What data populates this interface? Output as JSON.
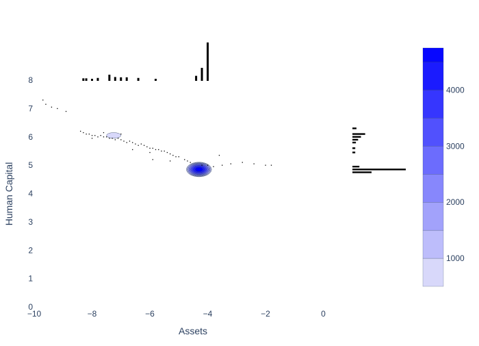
{
  "chart_data": {
    "type": "contour",
    "xlabel": "Assets",
    "ylabel": "Human Capital",
    "xlim": [
      -10,
      0
    ],
    "ylim": [
      0,
      9.2
    ],
    "x_ticks": [
      -10,
      -8,
      -6,
      -4,
      -2,
      0
    ],
    "x_tick_labels": [
      "−10",
      "−8",
      "−6",
      "−4",
      "−2",
      "0"
    ],
    "y_ticks": [
      0,
      1,
      2,
      3,
      4,
      5,
      6,
      7,
      8
    ],
    "y_tick_labels": [
      "0",
      "1",
      "2",
      "3",
      "4",
      "5",
      "6",
      "7",
      "8"
    ],
    "grid": false,
    "colorbar": {
      "range": [
        500,
        4750
      ],
      "ticks": [
        1000,
        2000,
        3000,
        4000
      ],
      "tick_labels": [
        "1000",
        "2000",
        "3000",
        "4000"
      ],
      "levels": [
        500,
        1000,
        1500,
        2000,
        2500,
        3000,
        3500,
        4000,
        4500,
        4750
      ],
      "color_low": "#e6e6fa",
      "color_high": "#0000ff"
    },
    "density_peaks": [
      {
        "x": -4.3,
        "y": 4.85,
        "value": 4700
      },
      {
        "x": -7.25,
        "y": 6.05,
        "value": 900
      }
    ],
    "scatter_points": [
      [
        -9.7,
        7.3
      ],
      [
        -9.6,
        7.15
      ],
      [
        -9.4,
        7.05
      ],
      [
        -9.2,
        7.0
      ],
      [
        -8.9,
        6.9
      ],
      [
        -8.4,
        6.2
      ],
      [
        -8.3,
        6.15
      ],
      [
        -8.2,
        6.1
      ],
      [
        -8.1,
        6.1
      ],
      [
        -8.0,
        6.05
      ],
      [
        -7.9,
        6.05
      ],
      [
        -7.8,
        6.0
      ],
      [
        -7.7,
        6.05
      ],
      [
        -7.6,
        6.0
      ],
      [
        -7.5,
        6.0
      ],
      [
        -7.4,
        5.95
      ],
      [
        -7.3,
        5.95
      ],
      [
        -7.2,
        5.9
      ],
      [
        -7.1,
        5.95
      ],
      [
        -7.0,
        5.9
      ],
      [
        -6.9,
        5.85
      ],
      [
        -6.8,
        5.8
      ],
      [
        -6.7,
        5.85
      ],
      [
        -6.6,
        5.8
      ],
      [
        -6.5,
        5.75
      ],
      [
        -6.4,
        5.7
      ],
      [
        -6.3,
        5.75
      ],
      [
        -6.2,
        5.7
      ],
      [
        -6.1,
        5.65
      ],
      [
        -6.0,
        5.6
      ],
      [
        -5.9,
        5.6
      ],
      [
        -5.8,
        5.55
      ],
      [
        -5.7,
        5.55
      ],
      [
        -5.6,
        5.5
      ],
      [
        -5.5,
        5.5
      ],
      [
        -5.4,
        5.45
      ],
      [
        -5.3,
        5.4
      ],
      [
        -5.2,
        5.35
      ],
      [
        -5.1,
        5.3
      ],
      [
        -5.0,
        5.3
      ],
      [
        -4.8,
        5.2
      ],
      [
        -4.7,
        5.15
      ],
      [
        -4.6,
        5.1
      ],
      [
        -4.2,
        5.0
      ],
      [
        -4.0,
        5.0
      ],
      [
        -3.8,
        4.95
      ],
      [
        -3.5,
        5.0
      ],
      [
        -3.2,
        5.05
      ],
      [
        -2.8,
        5.1
      ],
      [
        -2.4,
        5.05
      ],
      [
        -2.0,
        5.0
      ],
      [
        -1.8,
        5.0
      ],
      [
        -7.6,
        6.15
      ],
      [
        -6.0,
        5.45
      ],
      [
        -5.3,
        5.15
      ],
      [
        -5.9,
        5.2
      ],
      [
        -3.6,
        5.35
      ],
      [
        -6.6,
        5.55
      ],
      [
        -7.0,
        6.1
      ],
      [
        -8.0,
        5.95
      ]
    ],
    "marginal_x": {
      "bins": [
        -8.3,
        -8.2,
        -8.0,
        -7.8,
        -7.4,
        -7.2,
        -7.0,
        -6.8,
        -6.4,
        -5.8,
        -4.4,
        -4.2,
        -4.0
      ],
      "counts": [
        3,
        3,
        2,
        4,
        18,
        7,
        6,
        6,
        4,
        2,
        12,
        80,
        700
      ]
    },
    "marginal_y": {
      "bins": [
        6.3,
        6.1,
        6.0,
        5.9,
        5.8,
        5.6,
        5.45,
        4.95,
        4.85,
        4.75
      ],
      "counts": [
        4,
        40,
        18,
        8,
        3,
        2,
        2,
        12,
        700,
        90
      ]
    }
  }
}
